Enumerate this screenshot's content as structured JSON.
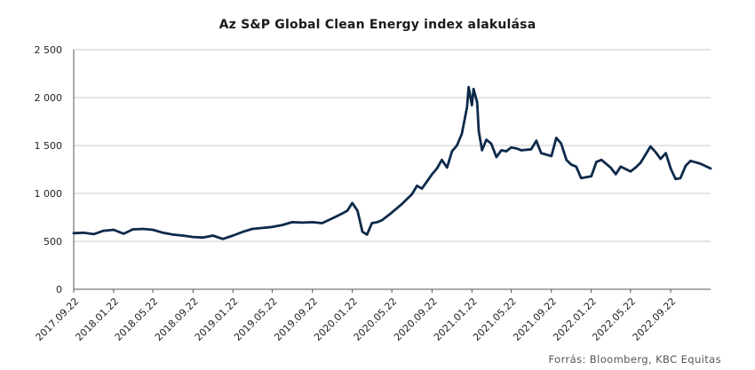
{
  "chart_data": {
    "type": "line",
    "title": "Az S&P Global Clean Energy index alakulása",
    "source": "Forrás: Bloomberg, KBC Equitas",
    "xlabel": "",
    "ylabel": "",
    "ylim": [
      0,
      2500
    ],
    "y_ticks": [
      0,
      500,
      1000,
      1500,
      2000,
      2500
    ],
    "y_tick_labels": [
      "0",
      "500",
      "1 000",
      "1 500",
      "2 000",
      "2 500"
    ],
    "x_range": [
      "2017.09.22",
      "2023.01.22"
    ],
    "x_tick_labels": [
      "2017.09.22",
      "2018.01.22",
      "2018.05.22",
      "2018.09.22",
      "2019.01.22",
      "2019.05.22",
      "2019.09.22",
      "2020.01.22",
      "2020.05.22",
      "2020.09.22",
      "2021.01.22",
      "2021.05.22",
      "2021.09.22",
      "2022.01.22",
      "2022.05.22",
      "2022.09.22"
    ],
    "grid": "horizontal",
    "line_color": "#0d2a4a",
    "series": [
      {
        "x": [
          "2017.09.22",
          "2017.10.22",
          "2017.11.22",
          "2017.12.22",
          "2018.01.22",
          "2018.02.22",
          "2018.03.22",
          "2018.04.22",
          "2018.05.22",
          "2018.06.22",
          "2018.07.22",
          "2018.08.22",
          "2018.09.22",
          "2018.10.22",
          "2018.11.22",
          "2018.12.22",
          "2019.01.22",
          "2019.02.22",
          "2019.03.22",
          "2019.04.22",
          "2019.05.22",
          "2019.06.22",
          "2019.07.22",
          "2019.08.22",
          "2019.09.22",
          "2019.10.22",
          "2019.11.22",
          "2019.12.22",
          "2020.01.07",
          "2020.01.22",
          "2020.02.07",
          "2020.02.22",
          "2020.03.07",
          "2020.03.22",
          "2020.04.07",
          "2020.04.22",
          "2020.05.22",
          "2020.06.22",
          "2020.07.22",
          "2020.08.07",
          "2020.08.22",
          "2020.09.22",
          "2020.10.07",
          "2020.10.22",
          "2020.11.07",
          "2020.11.22",
          "2020.12.07",
          "2020.12.22",
          "2021.01.07",
          "2021.01.12",
          "2021.01.22",
          "2021.01.27",
          "2021.02.07",
          "2021.02.12",
          "2021.02.22",
          "2021.03.07",
          "2021.03.22",
          "2021.04.07",
          "2021.04.22",
          "2021.05.07",
          "2021.05.22",
          "2021.06.07",
          "2021.06.22",
          "2021.07.22",
          "2021.08.07",
          "2021.08.22",
          "2021.09.22",
          "2021.10.07",
          "2021.10.22",
          "2021.11.07",
          "2021.11.22",
          "2021.12.07",
          "2021.12.22",
          "2022.01.22",
          "2022.02.07",
          "2022.02.22",
          "2022.03.22",
          "2022.04.07",
          "2022.04.22",
          "2022.05.22",
          "2022.06.07",
          "2022.06.22",
          "2022.07.22",
          "2022.08.07",
          "2022.08.22",
          "2022.09.07",
          "2022.09.22",
          "2022.10.07",
          "2022.10.22",
          "2022.11.07",
          "2022.11.22",
          "2022.12.22",
          "2023.01.22"
        ],
        "values": [
          585,
          590,
          575,
          610,
          620,
          580,
          625,
          630,
          620,
          590,
          570,
          560,
          545,
          540,
          560,
          525,
          560,
          600,
          630,
          640,
          650,
          670,
          700,
          695,
          700,
          690,
          740,
          790,
          820,
          900,
          820,
          600,
          570,
          690,
          700,
          720,
          800,
          890,
          990,
          1080,
          1050,
          1200,
          1260,
          1350,
          1270,
          1440,
          1500,
          1620,
          1900,
          2110,
          1920,
          2090,
          1950,
          1650,
          1450,
          1560,
          1520,
          1380,
          1450,
          1440,
          1480,
          1470,
          1450,
          1460,
          1550,
          1420,
          1390,
          1580,
          1520,
          1350,
          1300,
          1280,
          1160,
          1180,
          1330,
          1350,
          1270,
          1200,
          1280,
          1230,
          1270,
          1320,
          1490,
          1430,
          1360,
          1420,
          1260,
          1150,
          1160,
          1290,
          1340,
          1310,
          1260
        ]
      }
    ]
  }
}
